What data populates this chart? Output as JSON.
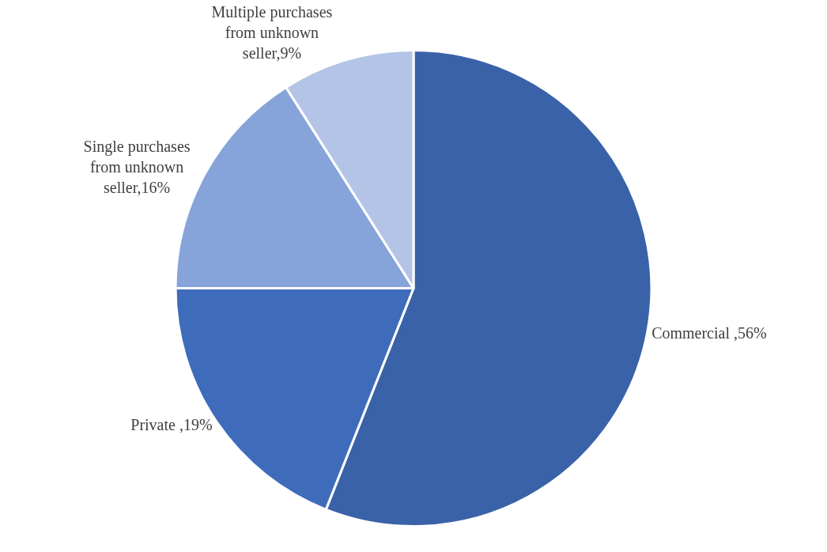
{
  "chart_data": {
    "type": "pie",
    "categories": [
      "Commercial ",
      "Private ",
      "Single purchases from unknown seller",
      "Multiple purchases from unknown seller"
    ],
    "values": [
      56,
      19,
      16,
      9
    ],
    "colors": [
      "#3a62a8",
      "#3f6bbb",
      "#86a4da",
      "#b3c4e6"
    ],
    "value_labels": [
      ",56%",
      ",19%",
      ",16%",
      ",9%"
    ],
    "legend": false
  }
}
